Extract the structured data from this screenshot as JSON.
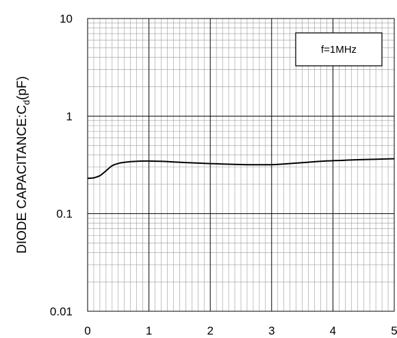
{
  "chart_data": {
    "type": "line",
    "title": "",
    "xlabel": "",
    "ylabel": {
      "main": "DIODE CAPACITANCE:C",
      "subscript": "d",
      "unit": "(pF)"
    },
    "xlim": [
      0,
      5
    ],
    "ylim": [
      0.01,
      10
    ],
    "yscale": "log",
    "grid": true,
    "x_tick_labels": [
      "0",
      "1",
      "2",
      "3",
      "4",
      "5"
    ],
    "y_tick_labels": [
      "10",
      "1",
      "0.1",
      "0.01"
    ],
    "y_tick_values": [
      10,
      1,
      0.1,
      0.01
    ],
    "legend": {
      "text": "f=1MHz",
      "placement": "top-right"
    },
    "series": [
      {
        "x": [
          0,
          0.1,
          0.2,
          0.3,
          0.4,
          0.5,
          0.6,
          0.7,
          0.8,
          0.9,
          1.0,
          1.2,
          1.4,
          1.6,
          1.8,
          2.0,
          2.2,
          2.4,
          2.6,
          2.8,
          3.0,
          3.2,
          3.4,
          3.6,
          3.8,
          4.0,
          4.2,
          4.4,
          4.6,
          4.8,
          5.0
        ],
        "values": [
          0.23,
          0.233,
          0.245,
          0.275,
          0.31,
          0.327,
          0.336,
          0.341,
          0.344,
          0.346,
          0.346,
          0.344,
          0.339,
          0.334,
          0.33,
          0.326,
          0.323,
          0.32,
          0.318,
          0.317,
          0.318,
          0.323,
          0.33,
          0.337,
          0.344,
          0.349,
          0.353,
          0.357,
          0.36,
          0.363,
          0.366
        ]
      }
    ]
  }
}
